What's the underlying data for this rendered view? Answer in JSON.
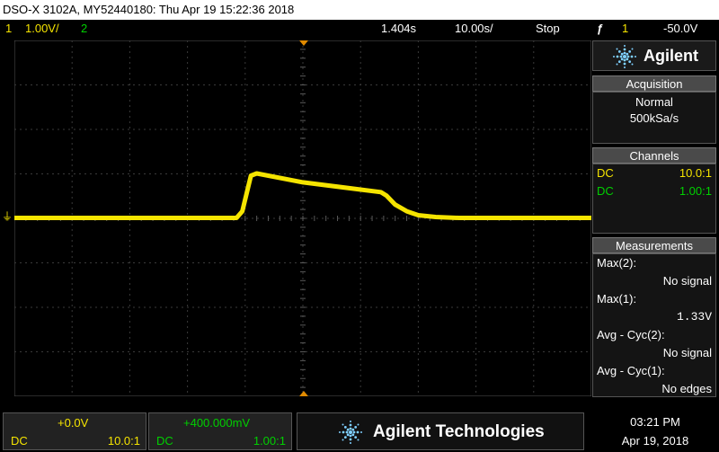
{
  "title_bar": "DSO-X 3102A, MY52440180: Thu Apr 19 15:22:36 2018",
  "status": {
    "ch1_num": "1",
    "ch1_scale": "1.00V/",
    "ch2_num": "2",
    "time_pos": "1.404s",
    "time_scale": "10.00s/",
    "run_state": "Stop",
    "trig_icon": "ƒ",
    "trig_src": "1",
    "trig_level": "-50.0V"
  },
  "brand": {
    "logo": "Agilent",
    "full": "Agilent Technologies"
  },
  "acquisition": {
    "header": "Acquisition",
    "mode": "Normal",
    "rate": "500kSa/s"
  },
  "channels": {
    "header": "Channels",
    "rows": [
      {
        "coupling": "DC",
        "probe": "10.0:1",
        "color": "#f5e400"
      },
      {
        "coupling": "DC",
        "probe": "1.00:1",
        "color": "#00d000"
      }
    ]
  },
  "measurements": {
    "header": "Measurements",
    "items": [
      {
        "label": "Max(2):",
        "value": "No signal"
      },
      {
        "label": "Max(1):",
        "value": "1.33V"
      },
      {
        "label": "Avg - Cyc(2):",
        "value": "No signal"
      },
      {
        "label": "Avg - Cyc(1):",
        "value": "No edges"
      }
    ]
  },
  "bottom": {
    "ch1": {
      "offset": "+0.0V",
      "coupling": "DC",
      "probe": "10.0:1"
    },
    "ch2": {
      "offset": "+400.000mV",
      "coupling": "DC",
      "probe": "1.00:1"
    },
    "time": "03:21 PM",
    "date": "Apr 19, 2018"
  },
  "colors": {
    "ch1": "#f5e400",
    "ch2": "#00d000",
    "grid": "#3a3a3a"
  },
  "trace": {
    "channel": 1,
    "baseline_divs": 0,
    "points_div": [
      [
        -5,
        0
      ],
      [
        -1.15,
        0
      ],
      [
        -1.05,
        0.15
      ],
      [
        -0.9,
        0.95
      ],
      [
        -0.8,
        1.0
      ],
      [
        0,
        0.8
      ],
      [
        1.35,
        0.58
      ],
      [
        1.45,
        0.5
      ],
      [
        1.6,
        0.3
      ],
      [
        1.8,
        0.15
      ],
      [
        2.0,
        0.06
      ],
      [
        2.3,
        0.02
      ],
      [
        2.7,
        0
      ],
      [
        5,
        0
      ]
    ]
  }
}
